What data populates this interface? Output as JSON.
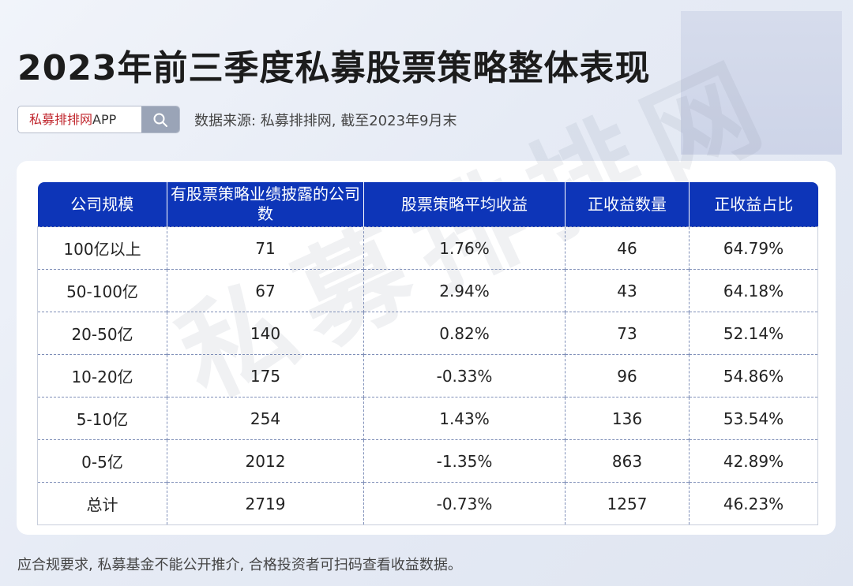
{
  "title": "2023年前三季度私募股票策略整体表现",
  "search": {
    "brand_cn": "私募排排网",
    "brand_en": "APP",
    "icon": "search-icon"
  },
  "source_text": "数据来源: 私募排排网, 截至2023年9月末",
  "watermark": "私募排排网",
  "table": {
    "headers": [
      "公司规模",
      "有股票策略业绩披露的公司数",
      "股票策略平均收益",
      "正收益数量",
      "正收益占比"
    ],
    "rows": [
      [
        "100亿以上",
        "71",
        "1.76%",
        "46",
        "64.79%"
      ],
      [
        "50-100亿",
        "67",
        "2.94%",
        "43",
        "64.18%"
      ],
      [
        "20-50亿",
        "140",
        "0.82%",
        "73",
        "52.14%"
      ],
      [
        "10-20亿",
        "175",
        "-0.33%",
        "96",
        "54.86%"
      ],
      [
        "5-10亿",
        "254",
        "1.43%",
        "136",
        "53.54%"
      ],
      [
        "0-5亿",
        "2012",
        "-1.35%",
        "863",
        "42.89%"
      ],
      [
        "总计",
        "2719",
        "-0.73%",
        "1257",
        "46.23%"
      ]
    ]
  },
  "footer_text": "应合规要求, 私募基金不能公开推介, 合格投资者可扫码查看收益数据。",
  "colors": {
    "header_bg": "#0d35b8",
    "brand_red": "#c0262d"
  }
}
